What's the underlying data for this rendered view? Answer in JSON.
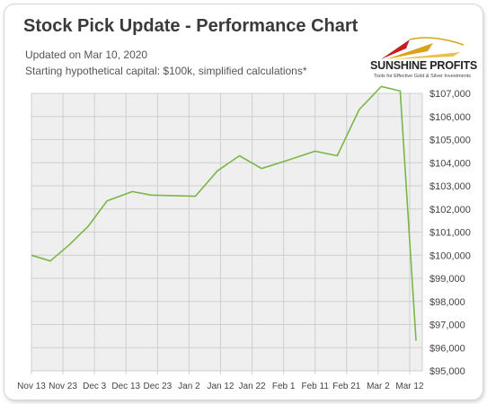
{
  "header": {
    "title": "Stock Pick Update - Performance Chart",
    "updated": "Updated on Mar 10, 2020",
    "capital": "Starting hypothetical capital: $100k, simplified calculations*"
  },
  "logo": {
    "name": "SUNSHINE PROFITS",
    "tagline": "Tools for Effective Gold & Silver Investments"
  },
  "colors": {
    "line": "#7ab648",
    "grid": "#cfcfcf",
    "plot_bg": "#efefef"
  },
  "chart_data": {
    "type": "line",
    "title": "Stock Pick Update - Performance Chart",
    "xlabel": "",
    "ylabel": "",
    "grid": true,
    "categories": [
      "Nov 13",
      "Nov 23",
      "Dec 3",
      "Dec 13",
      "Dec 23",
      "Jan 2",
      "Jan 12",
      "Jan 22",
      "Feb 1",
      "Feb 11",
      "Feb 21",
      "Mar 2",
      "Mar 12"
    ],
    "y_ticks": [
      "$95,000",
      "$96,000",
      "$97,000",
      "$98,000",
      "$99,000",
      "$100,000",
      "$101,000",
      "$102,000",
      "$103,000",
      "$104,000",
      "$105,000",
      "$106,000",
      "$107,000"
    ],
    "ylim": [
      95000,
      107000
    ],
    "xlim": [
      "2019-11-13",
      "2020-03-16"
    ],
    "series": [
      {
        "points": [
          {
            "x": "2019-11-13",
            "y": 100000
          },
          {
            "x": "2019-11-19",
            "y": 99750
          },
          {
            "x": "2019-11-25",
            "y": 100450
          },
          {
            "x": "2019-12-01",
            "y": 101250
          },
          {
            "x": "2019-12-07",
            "y": 102350
          },
          {
            "x": "2019-12-15",
            "y": 102750
          },
          {
            "x": "2019-12-21",
            "y": 102600
          },
          {
            "x": "2020-01-04",
            "y": 102550
          },
          {
            "x": "2020-01-11",
            "y": 103650
          },
          {
            "x": "2020-01-18",
            "y": 104300
          },
          {
            "x": "2020-01-25",
            "y": 103750
          },
          {
            "x": "2020-02-01",
            "y": 104050
          },
          {
            "x": "2020-02-11",
            "y": 104500
          },
          {
            "x": "2020-02-18",
            "y": 104300
          },
          {
            "x": "2020-02-25",
            "y": 106300
          },
          {
            "x": "2020-03-03",
            "y": 107300
          },
          {
            "x": "2020-03-09",
            "y": 107100
          },
          {
            "x": "2020-03-14",
            "y": 96300
          }
        ]
      }
    ]
  }
}
